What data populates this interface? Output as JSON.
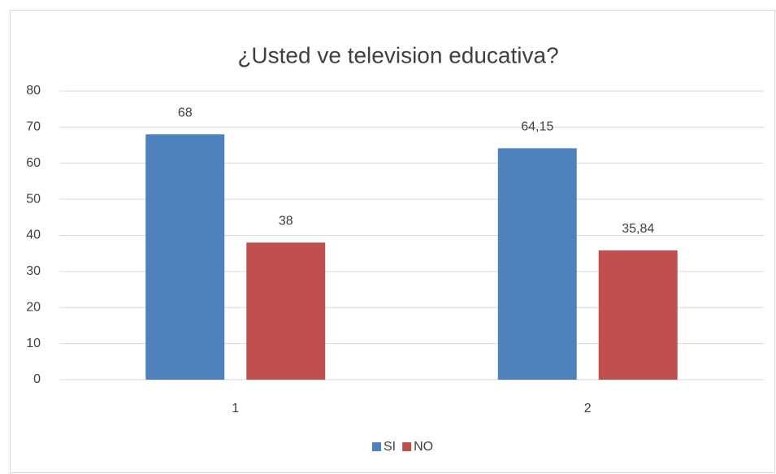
{
  "chart_data": {
    "type": "bar",
    "title": "¿Usted ve television educativa?",
    "categories": [
      "1",
      "2"
    ],
    "series": [
      {
        "name": "SI",
        "color": "#4f81bd",
        "values": [
          68,
          64.15
        ],
        "value_labels": [
          "68",
          "64,15"
        ]
      },
      {
        "name": "NO",
        "color": "#c0504d",
        "values": [
          38,
          35.84
        ],
        "value_labels": [
          "38",
          "35,84"
        ]
      }
    ],
    "ylim": [
      0,
      80
    ],
    "yticks": [
      0,
      10,
      20,
      30,
      40,
      50,
      60,
      70,
      80
    ],
    "grid": true,
    "legend": "bottom"
  }
}
